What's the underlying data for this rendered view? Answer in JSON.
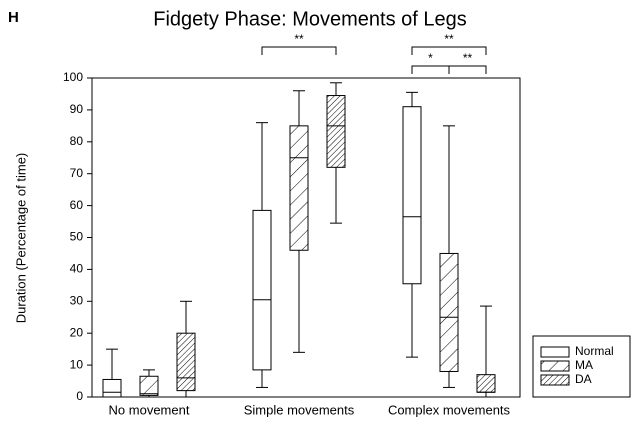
{
  "chart_data": {
    "type": "box",
    "panel_label": "H",
    "title": "Fidgety Phase: Movements of Legs",
    "y_label": "Duration (Percentage of time)",
    "categories": [
      "No movement",
      "Simple movements",
      "Complex movements"
    ],
    "series": [
      {
        "name": "Normal",
        "color": "#000000",
        "hatch": "none",
        "values": [
          {
            "min": 0,
            "q1": 0,
            "median": 1.5,
            "q3": 5.5,
            "max": 15
          },
          {
            "min": 3,
            "q1": 8.5,
            "median": 30.5,
            "q3": 58.5,
            "max": 86
          },
          {
            "min": 12.5,
            "q1": 35.5,
            "median": 56.5,
            "q3": 91,
            "max": 95.5
          }
        ]
      },
      {
        "name": "MA",
        "color": "#000000",
        "hatch": "sparse",
        "values": [
          {
            "min": 0,
            "q1": 0.5,
            "median": 1,
            "q3": 6.5,
            "max": 8.5
          },
          {
            "min": 14,
            "q1": 46,
            "median": 75,
            "q3": 85,
            "max": 96
          },
          {
            "min": 3,
            "q1": 8,
            "median": 25,
            "q3": 45,
            "max": 85
          }
        ]
      },
      {
        "name": "DA",
        "color": "#000000",
        "hatch": "dense",
        "values": [
          {
            "min": 0,
            "q1": 2,
            "median": 6,
            "q3": 20,
            "max": 30
          },
          {
            "min": 54.5,
            "q1": 72,
            "median": 85,
            "q3": 94.5,
            "max": 98.5
          },
          {
            "min": 0,
            "q1": 1.5,
            "median": 1.5,
            "q3": 7,
            "max": 28.5
          }
        ]
      }
    ],
    "annotations": [
      {
        "text": "**",
        "category": "Simple movements",
        "between": [
          "Normal",
          "DA"
        ]
      },
      {
        "text": "**",
        "category": "Complex movements",
        "between": [
          "Normal",
          "DA"
        ]
      },
      {
        "text": "*",
        "category": "Complex movements",
        "between": [
          "Normal",
          "MA"
        ]
      },
      {
        "text": "**",
        "category": "Complex movements",
        "between": [
          "MA",
          "DA"
        ]
      }
    ],
    "ylim": [
      0,
      100
    ],
    "yticks": [
      0,
      10,
      20,
      30,
      40,
      50,
      60,
      70,
      80,
      90,
      100
    ],
    "legend": "lower right"
  }
}
